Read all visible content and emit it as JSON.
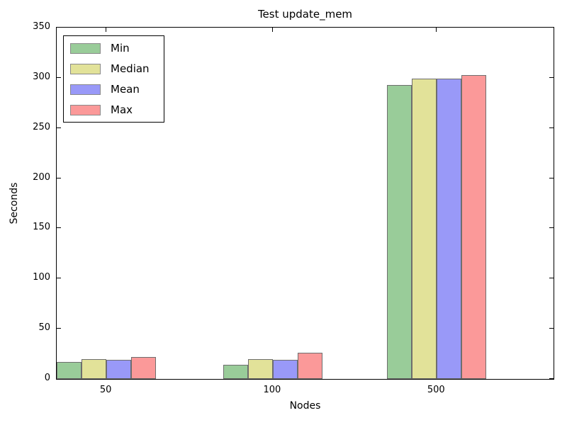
{
  "chart_data": {
    "type": "bar",
    "title": "Test update_mem",
    "xlabel": "Nodes",
    "ylabel": "Seconds",
    "categories": [
      "50",
      "100",
      "500"
    ],
    "series": [
      {
        "name": "Min",
        "color": "#99cc99",
        "values": [
          17,
          14,
          293
        ]
      },
      {
        "name": "Median",
        "color": "#e2e299",
        "values": [
          20,
          20,
          299
        ]
      },
      {
        "name": "Mean",
        "color": "#9999f8",
        "values": [
          19,
          19,
          299
        ]
      },
      {
        "name": "Max",
        "color": "#fb9999",
        "values": [
          22,
          26,
          303
        ]
      }
    ],
    "ylim": [
      0,
      350
    ],
    "yticks": [
      0,
      50,
      100,
      150,
      200,
      250,
      300,
      350
    ],
    "grid": false,
    "legend_position": "upper left",
    "bar_edge_color": "#6e6e6e",
    "group_center_fracs": [
      0.1,
      0.435,
      0.765
    ],
    "bar_width_frac": 0.0498
  }
}
